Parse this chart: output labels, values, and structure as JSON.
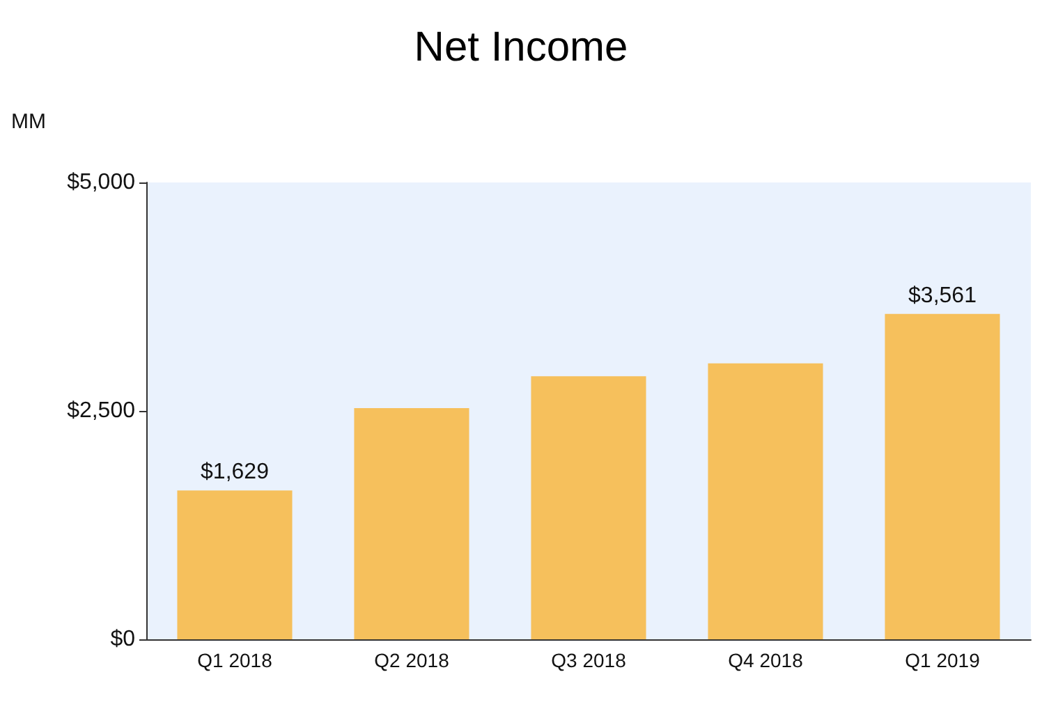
{
  "chart_data": {
    "type": "bar",
    "title": "Net Income",
    "ylabel": "MM",
    "categories": [
      "Q1 2018",
      "Q2 2018",
      "Q3 2018",
      "Q4 2018",
      "Q1 2019"
    ],
    "values": [
      1629,
      2530,
      2880,
      3020,
      3561
    ],
    "value_labels": [
      "$1,629",
      null,
      null,
      null,
      "$3,561"
    ],
    "color": "#f6c05c",
    "ylim": [
      0,
      5000
    ],
    "yticks": [
      {
        "value": 0,
        "label": "$0"
      },
      {
        "value": 2500,
        "label": "$2,500"
      },
      {
        "value": 5000,
        "label": "$5,000"
      }
    ],
    "grid": false
  }
}
